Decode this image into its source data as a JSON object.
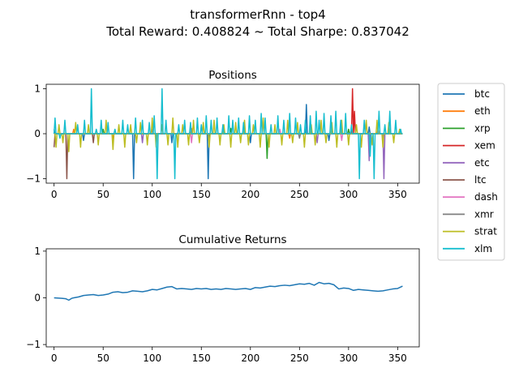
{
  "figure": {
    "title_line1": "transformerRnn - top4",
    "title_line2": "Total Reward: 0.408824 ~ Total Sharpe: 0.837042"
  },
  "colors": {
    "btc": "#1f77b4",
    "eth": "#ff7f0e",
    "xrp": "#2ca02c",
    "xem": "#d62728",
    "etc": "#9467bd",
    "ltc": "#8c564b",
    "dash": "#e377c2",
    "xmr": "#7f7f7f",
    "strat": "#bcbd22",
    "xlm": "#17becf"
  },
  "chart_data": [
    {
      "type": "line",
      "title": "Positions",
      "xlim": [
        -8,
        372
      ],
      "ylim": [
        -1.1,
        1.1
      ],
      "xticks": [
        0,
        50,
        100,
        150,
        200,
        250,
        300,
        350
      ],
      "yticks": [
        -1,
        0,
        1
      ],
      "n_points": 356,
      "legend": [
        "btc",
        "eth",
        "xrp",
        "xem",
        "etc",
        "ltc",
        "dash",
        "xmr",
        "strat",
        "xlm"
      ],
      "legend_position": "outside-right",
      "series": [
        {
          "name": "btc",
          "events": [
            [
              0,
              0.1
            ],
            [
              30,
              -0.15
            ],
            [
              81,
              -1.0
            ],
            [
              120,
              -0.2
            ],
            [
              157,
              -1.0
            ],
            [
              200,
              -0.2
            ],
            [
              257,
              0.65
            ],
            [
              280,
              -0.15
            ],
            [
              321,
              0.15
            ]
          ]
        },
        {
          "name": "eth",
          "events": [
            [
              20,
              0.1
            ],
            [
              60,
              -0.1
            ],
            [
              140,
              0.12
            ],
            [
              240,
              -0.1
            ],
            [
              330,
              0.1
            ]
          ]
        },
        {
          "name": "xrp",
          "events": [
            [
              50,
              0.1
            ],
            [
              180,
              0.12
            ],
            [
              217,
              -0.55
            ],
            [
              300,
              0.1
            ]
          ]
        },
        {
          "name": "xem",
          "events": [
            [
              304,
              1.0
            ],
            [
              306,
              0.5
            ]
          ]
        },
        {
          "name": "etc",
          "events": [
            [
              90,
              -0.2
            ],
            [
              268,
              -0.2
            ],
            [
              321,
              -0.6
            ],
            [
              336,
              -1.0
            ]
          ]
        },
        {
          "name": "ltc",
          "events": [
            [
              0,
              -0.3
            ],
            [
              13,
              -1.0
            ],
            [
              40,
              -0.2
            ]
          ]
        },
        {
          "name": "dash",
          "events": [
            [
              140,
              -0.2
            ],
            [
              230,
              0.1
            ],
            [
              293,
              -0.15
            ]
          ]
        },
        {
          "name": "xmr",
          "events": [
            [
              100,
              0.1
            ],
            [
              250,
              -0.1
            ]
          ]
        },
        {
          "name": "strat",
          "events": [
            [
              2,
              -0.3
            ],
            [
              5,
              0.2
            ],
            [
              9,
              -0.2
            ],
            [
              15,
              -0.4
            ],
            [
              22,
              0.25
            ],
            [
              27,
              -0.3
            ],
            [
              35,
              0.2
            ],
            [
              45,
              -0.25
            ],
            [
              53,
              0.3
            ],
            [
              60,
              -0.35
            ],
            [
              66,
              0.2
            ],
            [
              72,
              -0.3
            ],
            [
              78,
              0.2
            ],
            [
              84,
              -0.2
            ],
            [
              88,
              0.25
            ],
            [
              95,
              -0.25
            ],
            [
              100,
              0.35
            ],
            [
              104,
              -0.3
            ],
            [
              110,
              0.2
            ],
            [
              116,
              -0.25
            ],
            [
              121,
              0.35
            ],
            [
              126,
              -0.3
            ],
            [
              131,
              0.2
            ],
            [
              137,
              -0.25
            ],
            [
              142,
              0.3
            ],
            [
              148,
              -0.2
            ],
            [
              152,
              0.25
            ],
            [
              158,
              -0.3
            ],
            [
              163,
              0.3
            ],
            [
              169,
              -0.25
            ],
            [
              173,
              0.2
            ],
            [
              180,
              -0.3
            ],
            [
              185,
              0.25
            ],
            [
              190,
              -0.2
            ],
            [
              194,
              0.3
            ],
            [
              198,
              -0.25
            ],
            [
              203,
              0.2
            ],
            [
              210,
              -0.3
            ],
            [
              213,
              0.35
            ],
            [
              219,
              -0.3
            ],
            [
              225,
              0.2
            ],
            [
              232,
              -0.25
            ],
            [
              238,
              0.3
            ],
            [
              243,
              -0.2
            ],
            [
              248,
              0.25
            ],
            [
              255,
              -0.3
            ],
            [
              262,
              0.2
            ],
            [
              266,
              -0.25
            ],
            [
              272,
              0.3
            ],
            [
              277,
              -0.2
            ],
            [
              283,
              0.25
            ],
            [
              288,
              -0.3
            ],
            [
              293,
              0.3
            ],
            [
              300,
              -0.25
            ],
            [
              308,
              0.2
            ],
            [
              313,
              -0.3
            ],
            [
              318,
              0.3
            ],
            [
              324,
              -0.25
            ],
            [
              329,
              0.3
            ],
            [
              335,
              -0.3
            ],
            [
              341,
              0.25
            ],
            [
              346,
              -0.2
            ],
            [
              352,
              0.1
            ]
          ]
        },
        {
          "name": "xlm",
          "events": [
            [
              1,
              0.35
            ],
            [
              6,
              -0.1
            ],
            [
              11,
              0.3
            ],
            [
              18,
              0.0
            ],
            [
              24,
              0.2
            ],
            [
              31,
              0.3
            ],
            [
              38,
              1.0
            ],
            [
              43,
              0.1
            ],
            [
              48,
              0.3
            ],
            [
              55,
              0.25
            ],
            [
              62,
              0.1
            ],
            [
              70,
              0.3
            ],
            [
              75,
              0.2
            ],
            [
              83,
              0.35
            ],
            [
              90,
              0.3
            ],
            [
              97,
              0.25
            ],
            [
              102,
              0.4
            ],
            [
              105,
              -1.0
            ],
            [
              110,
              1.0
            ],
            [
              114,
              0.3
            ],
            [
              123,
              -1.0
            ],
            [
              127,
              0.2
            ],
            [
              133,
              0.3
            ],
            [
              139,
              0.25
            ],
            [
              146,
              0.35
            ],
            [
              150,
              0.2
            ],
            [
              155,
              0.4
            ],
            [
              160,
              0.3
            ],
            [
              166,
              0.35
            ],
            [
              172,
              0.2
            ],
            [
              178,
              0.4
            ],
            [
              182,
              0.3
            ],
            [
              188,
              0.35
            ],
            [
              193,
              0.25
            ],
            [
              199,
              0.4
            ],
            [
              205,
              0.3
            ],
            [
              211,
              0.45
            ],
            [
              215,
              0.35
            ],
            [
              221,
              0.2
            ],
            [
              228,
              0.4
            ],
            [
              234,
              0.3
            ],
            [
              240,
              0.45
            ],
            [
              246,
              0.35
            ],
            [
              251,
              0.2
            ],
            [
              256,
              0.3
            ],
            [
              261,
              0.4
            ],
            [
              267,
              0.5
            ],
            [
              270,
              0.3
            ],
            [
              275,
              0.45
            ],
            [
              282,
              0.4
            ],
            [
              287,
              0.5
            ],
            [
              292,
              0.3
            ],
            [
              297,
              0.45
            ],
            [
              303,
              0.2
            ],
            [
              311,
              -1.0
            ],
            [
              316,
              0.3
            ],
            [
              322,
              -0.5
            ],
            [
              326,
              -1.0
            ],
            [
              331,
              0.5
            ],
            [
              337,
              0.2
            ],
            [
              342,
              0.5
            ],
            [
              348,
              0.3
            ],
            [
              353,
              0.1
            ]
          ]
        }
      ]
    },
    {
      "type": "line",
      "title": "Cumulative Returns",
      "xlim": [
        -8,
        372
      ],
      "ylim": [
        -1.05,
        1.05
      ],
      "xticks": [
        0,
        50,
        100,
        150,
        200,
        250,
        300,
        350
      ],
      "yticks": [
        -1,
        0,
        1
      ],
      "series": [
        {
          "name": "btc",
          "x": [
            0,
            8,
            12,
            15,
            18,
            20,
            25,
            30,
            35,
            40,
            45,
            50,
            55,
            60,
            65,
            70,
            75,
            80,
            85,
            90,
            95,
            100,
            105,
            110,
            115,
            120,
            125,
            130,
            135,
            140,
            145,
            150,
            155,
            160,
            165,
            170,
            175,
            180,
            185,
            190,
            195,
            200,
            205,
            210,
            215,
            220,
            225,
            230,
            235,
            240,
            245,
            250,
            255,
            260,
            265,
            270,
            275,
            280,
            285,
            290,
            295,
            300,
            305,
            310,
            315,
            320,
            325,
            330,
            335,
            340,
            345,
            350,
            355
          ],
          "y": [
            0.0,
            -0.01,
            -0.02,
            -0.05,
            -0.01,
            0.0,
            0.02,
            0.05,
            0.06,
            0.07,
            0.05,
            0.06,
            0.08,
            0.12,
            0.13,
            0.11,
            0.12,
            0.15,
            0.14,
            0.13,
            0.15,
            0.18,
            0.17,
            0.2,
            0.23,
            0.24,
            0.19,
            0.2,
            0.19,
            0.18,
            0.2,
            0.19,
            0.2,
            0.18,
            0.19,
            0.18,
            0.2,
            0.19,
            0.18,
            0.19,
            0.2,
            0.18,
            0.22,
            0.21,
            0.23,
            0.25,
            0.24,
            0.26,
            0.27,
            0.26,
            0.28,
            0.3,
            0.29,
            0.31,
            0.27,
            0.33,
            0.3,
            0.31,
            0.28,
            0.19,
            0.21,
            0.2,
            0.16,
            0.18,
            0.17,
            0.16,
            0.15,
            0.14,
            0.15,
            0.17,
            0.19,
            0.2,
            0.25
          ]
        }
      ]
    }
  ]
}
